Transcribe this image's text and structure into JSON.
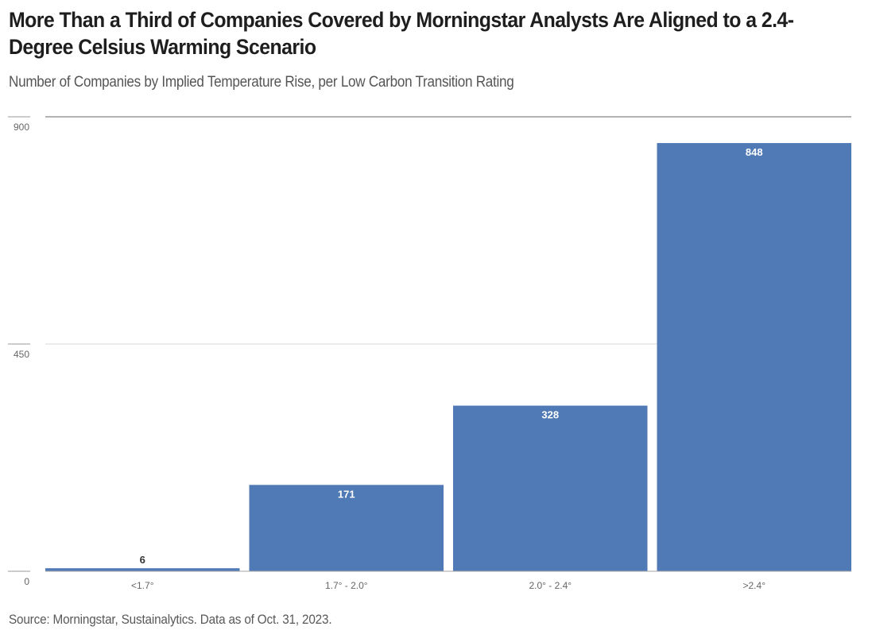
{
  "header": {
    "title": "More Than a Third of Companies Covered by Morningstar Analysts Are Aligned to a 2.4-Degree Celsius Warming Scenario",
    "subtitle": "Number of Companies by Implied Temperature Rise, per Low Carbon Transition Rating"
  },
  "footer": {
    "source": "Source: Morningstar, Sustainalytics. Data as of Oct. 31, 2023."
  },
  "colors": {
    "bar": "#4a76b4",
    "data_label_inside": "#ffffff",
    "data_label_outside": "#333333",
    "gridline": "#d9d9d9",
    "axis_tick": "#999999"
  },
  "chart_data": {
    "type": "bar",
    "title": "More Than a Third of Companies Covered by Morningstar Analysts Are Aligned to a 2.4-Degree Celsius Warming Scenario",
    "subtitle": "Number of Companies by Implied Temperature Rise, per Low Carbon Transition Rating",
    "xlabel": "",
    "ylabel": "",
    "categories": [
      "<1.7°",
      "1.7° - 2.0°",
      "2.0° - 2.4°",
      ">2.4°"
    ],
    "values": [
      6,
      171,
      328,
      848
    ],
    "data_labels": [
      "6",
      "171",
      "328",
      "848"
    ],
    "ylim": [
      0,
      900
    ],
    "yticks": [
      0,
      450,
      900
    ],
    "ytick_labels": [
      "0",
      "450",
      "900"
    ],
    "grid": true,
    "legend": "none"
  }
}
